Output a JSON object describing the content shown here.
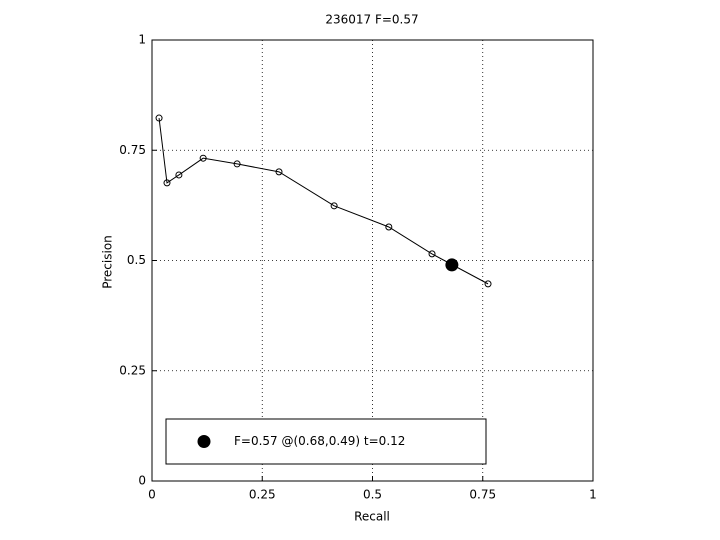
{
  "chart_data": {
    "type": "line",
    "title": "236017 F=0.57",
    "xlabel": "Recall",
    "ylabel": "Precision",
    "xlim": [
      0,
      1
    ],
    "ylim": [
      0,
      1
    ],
    "xticks": [
      0,
      0.25,
      0.5,
      0.75,
      1
    ],
    "yticks": [
      0,
      0.25,
      0.5,
      0.75,
      1
    ],
    "grid": true,
    "series": [
      {
        "x": [
          0.016,
          0.034,
          0.061,
          0.116,
          0.193,
          0.288,
          0.413,
          0.537,
          0.635,
          0.762
        ],
        "values": [
          0.823,
          0.676,
          0.694,
          0.732,
          0.719,
          0.701,
          0.624,
          0.576,
          0.515,
          0.447
        ],
        "color": "#000000",
        "marker": "open-circle"
      },
      {
        "name": "F=0.57 @(0.68,0.49) t=0.12",
        "x": [
          0.68
        ],
        "values": [
          0.49
        ],
        "color": "#000000",
        "marker": "filled-circle"
      }
    ]
  }
}
